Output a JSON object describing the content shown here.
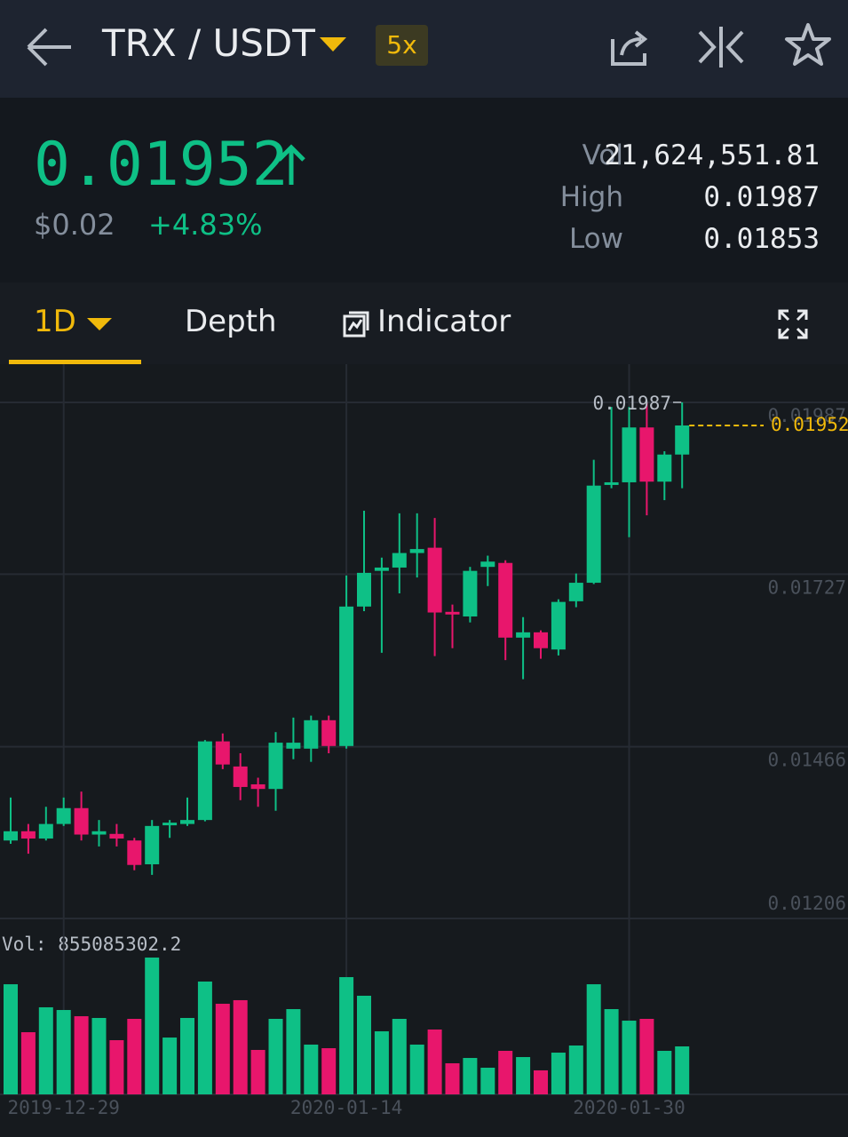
{
  "header": {
    "title": "TRX / USDT",
    "leverage": "5x"
  },
  "ticker": {
    "price": "0.01952",
    "price_usd": "$0.02",
    "change": "+4.83%",
    "stats": [
      {
        "label": "Vol",
        "value": "21,624,551.81"
      },
      {
        "label": "High",
        "value": "0.01987"
      },
      {
        "label": "Low",
        "value": "0.01853"
      }
    ]
  },
  "tabs": [
    "1D",
    "Depth",
    "Indicator"
  ],
  "chart_data": {
    "type": "candlestick",
    "categories": [
      null,
      null,
      null,
      "2019-12-29",
      null,
      null,
      null,
      null,
      null,
      null,
      null,
      null,
      null,
      null,
      null,
      null,
      null,
      null,
      null,
      "2020-01-14",
      null,
      null,
      null,
      null,
      null,
      null,
      null,
      null,
      null,
      null,
      null,
      null,
      null,
      null,
      null,
      "2020-01-30",
      null,
      null,
      null
    ],
    "open": [
      0.01324,
      0.01338,
      0.01327,
      0.01349,
      0.01373,
      0.01333,
      0.01334,
      0.01324,
      0.01288,
      0.01347,
      0.01349,
      0.01355,
      0.01474,
      0.01436,
      0.01409,
      0.01402,
      0.01463,
      0.01463,
      0.01506,
      0.01467,
      0.01678,
      0.01732,
      0.01737,
      0.01759,
      0.01767,
      0.0167,
      0.01663,
      0.01738,
      0.01744,
      0.01631,
      0.01639,
      0.01613,
      0.01686,
      0.01714,
      0.01862,
      0.01866,
      0.01949,
      0.01867,
      0.01908
    ],
    "high": [
      0.01389,
      0.01349,
      0.01375,
      0.01389,
      0.01398,
      0.01355,
      0.01349,
      0.01328,
      0.01355,
      0.01355,
      0.01389,
      0.01476,
      0.01486,
      0.01456,
      0.01419,
      0.01488,
      0.0151,
      0.01513,
      0.01513,
      0.01725,
      0.01823,
      0.01752,
      0.01819,
      0.01819,
      0.01812,
      0.01681,
      0.01738,
      0.01755,
      0.01748,
      0.01662,
      0.01642,
      0.01689,
      0.01728,
      0.019,
      0.0198,
      0.0198,
      0.01987,
      0.01913,
      0.01987
    ],
    "low": [
      0.01319,
      0.01304,
      0.01324,
      0.01346,
      0.01324,
      0.01315,
      0.01315,
      0.01279,
      0.01272,
      0.01328,
      0.01346,
      0.01353,
      0.01432,
      0.01385,
      0.01375,
      0.01369,
      0.01447,
      0.01443,
      0.01456,
      0.01463,
      0.01671,
      0.01608,
      0.01698,
      0.01722,
      0.01603,
      0.01615,
      0.01654,
      0.01709,
      0.01597,
      0.01568,
      0.01599,
      0.01604,
      0.01677,
      0.01712,
      0.01857,
      0.01783,
      0.01816,
      0.01839,
      0.01857
    ],
    "close": [
      0.01338,
      0.01327,
      0.01349,
      0.01373,
      0.01333,
      0.01338,
      0.01327,
      0.01287,
      0.01346,
      0.01351,
      0.01355,
      0.01474,
      0.01439,
      0.01405,
      0.01402,
      0.01472,
      0.01472,
      0.01506,
      0.01467,
      0.01678,
      0.01729,
      0.01737,
      0.01759,
      0.01765,
      0.01669,
      0.01666,
      0.01732,
      0.01746,
      0.01631,
      0.01639,
      0.01615,
      0.01685,
      0.01714,
      0.01861,
      0.01866,
      0.01949,
      0.01867,
      0.01908,
      0.01952
    ],
    "volume": [
      1963000000,
      1108000000,
      1552000000,
      1504000000,
      1393000000,
      1362000000,
      966000000,
      1346000000,
      2439000000,
      1013000000,
      1362000000,
      2011000000,
      1615000000,
      1679000000,
      792000000,
      1346000000,
      1520000000,
      887000000,
      823000000,
      2090000000,
      1758000000,
      1124000000,
      1346000000,
      887000000,
      1156000000,
      554000000,
      649000000,
      475000000,
      776000000,
      665000000,
      428000000,
      744000000,
      871000000,
      1963000000,
      1520000000,
      1314000000,
      1346000000,
      776000000,
      855085302.2
    ],
    "volume_label": "Vol: 855085302.2",
    "ylim": [
      0.01206,
      0.02038
    ],
    "yticks": [
      0.01987,
      0.01727,
      0.01466,
      0.01206
    ],
    "vlim": [
      0,
      2882000000
    ],
    "high_marker": 0.01987,
    "last_price": 0.01952,
    "up_color": "#0ec086",
    "down_color": "#e8166c",
    "last_color": "#f0b90b",
    "grid": true
  }
}
